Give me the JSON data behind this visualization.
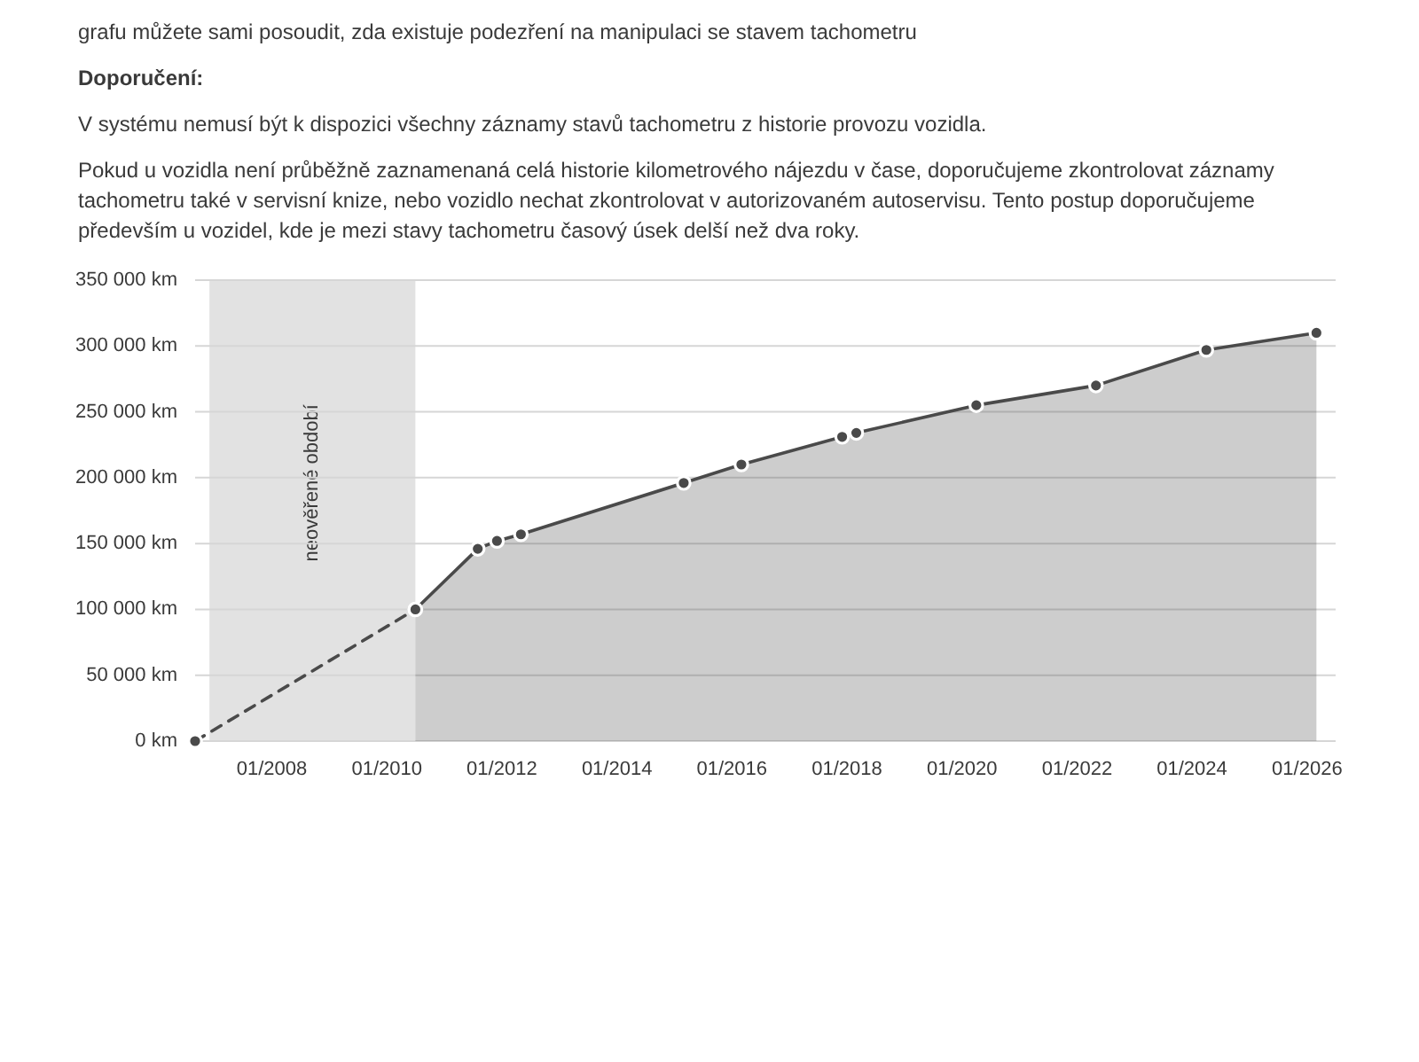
{
  "chart_data": {
    "type": "area",
    "annotations": [
      "grafu můžete sami posoudit, zda existuje podezření na manipulaci se stavem tachometru",
      "Doporučení:",
      "V systému nemusí být k dispozici všechny záznamy stavů tachometru z historie provozu vozidla.",
      "Pokud u vozidla není průběžně zaznamenaná celá historie kilometrového nájezdu v čase, doporučujeme zkontrolovat záznamy tachometru také v servisní knize, nebo vozidlo nechat zkontrolovat v autorizovaném autoservisu. Tento postup doporučujeme především u vozidel, kde je mezi stavy tachometru časový úsek delší než dva roky."
    ],
    "xlim": [
      "2006-09",
      "2026-07"
    ],
    "xticks": [
      {
        "value": "2008-01",
        "label": "01/2008"
      },
      {
        "value": "2010-01",
        "label": "01/2010"
      },
      {
        "value": "2012-01",
        "label": "01/2012"
      },
      {
        "value": "2014-01",
        "label": "01/2014"
      },
      {
        "value": "2016-01",
        "label": "01/2016"
      },
      {
        "value": "2018-01",
        "label": "01/2018"
      },
      {
        "value": "2020-01",
        "label": "01/2020"
      },
      {
        "value": "2022-01",
        "label": "01/2022"
      },
      {
        "value": "2024-01",
        "label": "01/2024"
      },
      {
        "value": "2026-01",
        "label": "01/2026"
      }
    ],
    "ylim": [
      0,
      350000
    ],
    "yticks": [
      {
        "value": 0,
        "label": "0 km"
      },
      {
        "value": 50000,
        "label": "50 000 km"
      },
      {
        "value": 100000,
        "label": "100 000 km"
      },
      {
        "value": 150000,
        "label": "150 000 km"
      },
      {
        "value": 200000,
        "label": "200 000 km"
      },
      {
        "value": 250000,
        "label": "250 000 km"
      },
      {
        "value": 300000,
        "label": "300 000 km"
      },
      {
        "value": 350000,
        "label": "350 000 km"
      }
    ],
    "grid": "y",
    "marker": "circle",
    "line_style": "solid",
    "bands": [
      {
        "axis": "x",
        "from": "2006-12",
        "to": "2010-07",
        "label": "neověřené období",
        "color": "#e2e2e2"
      }
    ],
    "series": [
      {
        "type": "line",
        "line_style": "dashed",
        "color": "#4a4a4a",
        "x": [
          "2006-09",
          "2010-07"
        ],
        "values": [
          0,
          100000
        ]
      },
      {
        "color": "#4a4a4a",
        "x": [
          "2010-07",
          "2011-08",
          "2011-12",
          "2012-05",
          "2015-03",
          "2016-03",
          "2017-12",
          "2018-03",
          "2020-04",
          "2022-05",
          "2024-04",
          "2026-03"
        ],
        "values": [
          100000,
          146000,
          152000,
          157000,
          196000,
          210000,
          231000,
          234000,
          255000,
          270000,
          297000,
          310000
        ]
      }
    ]
  }
}
